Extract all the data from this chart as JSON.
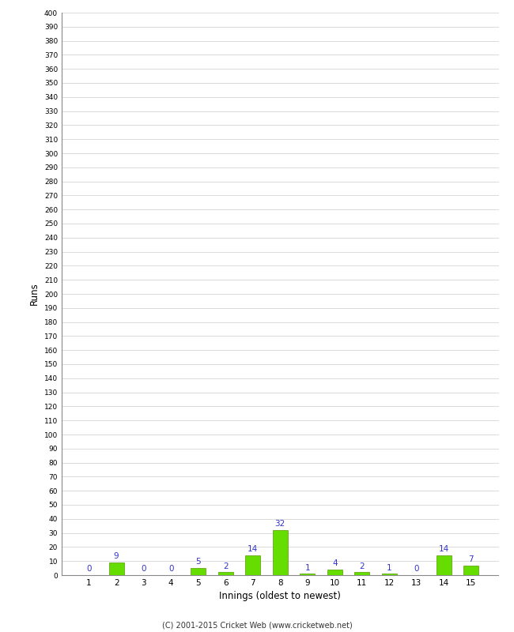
{
  "xlabel": "Innings (oldest to newest)",
  "ylabel": "Runs",
  "categories": [
    "1",
    "2",
    "3",
    "4",
    "5",
    "6",
    "7",
    "8",
    "9",
    "10",
    "11",
    "12",
    "13",
    "14",
    "15"
  ],
  "values": [
    0,
    9,
    0,
    0,
    5,
    2,
    14,
    32,
    1,
    4,
    2,
    1,
    0,
    14,
    7
  ],
  "bar_color": "#66dd00",
  "bar_edge_color": "#559900",
  "label_color": "#3333cc",
  "ylim": [
    0,
    400
  ],
  "background_color": "#ffffff",
  "grid_color": "#cccccc",
  "footer": "(C) 2001-2015 Cricket Web (www.cricketweb.net)",
  "footer_color": "#333333"
}
